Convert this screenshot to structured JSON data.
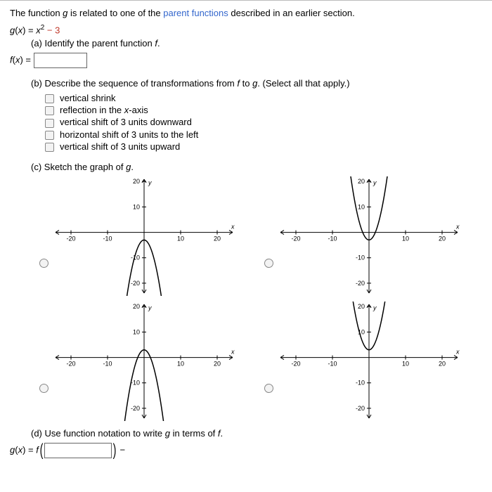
{
  "intro": {
    "pre": "The function ",
    "g": "g",
    "mid": " is related to one of the ",
    "link": "parent functions",
    "post": " described in an earlier section."
  },
  "gx": {
    "lhs": "g",
    "x": "x",
    "eq": " = ",
    "base": "x",
    "exp": "2",
    "minus": " − ",
    "three": "3"
  },
  "partA": {
    "prompt": "(a) Identify the parent function ",
    "f": "f",
    "period": ".",
    "flhs": "f",
    "x": "x",
    "eq": " = "
  },
  "partB": {
    "prompt_pre": "(b) Describe the sequence of transformations from ",
    "f": "f",
    "to": " to ",
    "g": "g",
    "prompt_post": ". (Select all that apply.)",
    "options": [
      "vertical shrink",
      "reflection in the x-axis",
      "vertical shift of 3 units downward",
      "horizontal shift of 3 units to the left",
      "vertical shift of 3 units upward"
    ]
  },
  "partC": {
    "prompt_pre": "(c) Sketch the graph of ",
    "g": "g",
    "period": ".",
    "axis": {
      "xmin": -25,
      "xmax": 25,
      "ymin": -25,
      "ymax": 22,
      "xticks": [
        -20,
        -10,
        10,
        20
      ],
      "yticks": [
        -20,
        -10,
        10,
        20
      ],
      "xlabel": "x",
      "ylabel": "y"
    },
    "charts": [
      {
        "type": "down",
        "vshift": -3
      },
      {
        "type": "up",
        "vshift": -3
      },
      {
        "type": "down",
        "vshift": 3
      },
      {
        "type": "up",
        "vshift": 3
      }
    ]
  },
  "partD": {
    "prompt_pre": "(d) Use function notation to write ",
    "g": "g",
    "mid": " in terms of ",
    "f": "f",
    "period": ".",
    "glhs": "g",
    "x": "x",
    "eq": " = ",
    "fcall": "f",
    "minus": " − "
  }
}
